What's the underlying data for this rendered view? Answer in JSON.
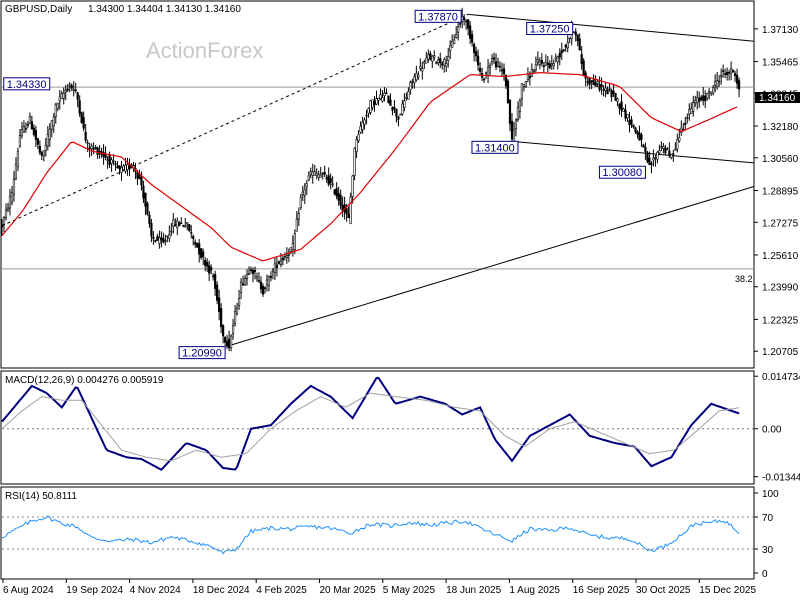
{
  "header": {
    "symbol": "GBPUSD,Daily",
    "ohlc": "1.34300 1.34404 1.34130 1.34160",
    "watermark": "ActionForex"
  },
  "colors": {
    "candle": "#000000",
    "moving_average": "#e00000",
    "macd_line": "#000080",
    "signal_line": "#a0a0a0",
    "rsi_line": "#1e90ff",
    "trendline": "#000000",
    "label_text": "#000080",
    "current_price_box": "#000000"
  },
  "chart_data": [
    {
      "type": "candlestick",
      "title": "GBPUSD,Daily",
      "ylim": [
        1.1985,
        1.3855
      ],
      "y_ticks": [
        "1.37130",
        "1.35465",
        "1.33845",
        "1.32180",
        "1.30560",
        "1.28895",
        "1.27275",
        "1.25610",
        "1.23990",
        "1.22325",
        "1.20705"
      ],
      "current_price": "1.34160",
      "x_ticks": [
        "6 Aug 2024",
        "19 Sep 2024",
        "4 Nov 2024",
        "18 Dec 2024",
        "4 Feb 2025",
        "20 Mar 2025",
        "5 May 2025",
        "18 Jun 2025",
        "1 Aug 2025",
        "16 Sep 2025",
        "30 Oct 2025",
        "15 Dec 2025"
      ],
      "price_path": [
        [
          0,
          1.271
        ],
        [
          10,
          1.288
        ],
        [
          18,
          1.317
        ],
        [
          28,
          1.325
        ],
        [
          40,
          1.305
        ],
        [
          55,
          1.333
        ],
        [
          68,
          1.343
        ],
        [
          75,
          1.338
        ],
        [
          85,
          1.312
        ],
        [
          100,
          1.308
        ],
        [
          118,
          1.299
        ],
        [
          132,
          1.302
        ],
        [
          140,
          1.292
        ],
        [
          150,
          1.265
        ],
        [
          162,
          1.262
        ],
        [
          172,
          1.272
        ],
        [
          185,
          1.272
        ],
        [
          200,
          1.256
        ],
        [
          212,
          1.245
        ],
        [
          222,
          1.215
        ],
        [
          228,
          1.2099
        ],
        [
          240,
          1.241
        ],
        [
          250,
          1.25
        ],
        [
          262,
          1.238
        ],
        [
          275,
          1.251
        ],
        [
          292,
          1.26
        ],
        [
          300,
          1.285
        ],
        [
          310,
          1.298
        ],
        [
          325,
          1.296
        ],
        [
          335,
          1.288
        ],
        [
          348,
          1.274
        ],
        [
          355,
          1.315
        ],
        [
          370,
          1.333
        ],
        [
          385,
          1.338
        ],
        [
          398,
          1.326
        ],
        [
          412,
          1.345
        ],
        [
          428,
          1.357
        ],
        [
          445,
          1.354
        ],
        [
          455,
          1.368
        ],
        [
          463,
          1.3787
        ],
        [
          472,
          1.365
        ],
        [
          482,
          1.345
        ],
        [
          492,
          1.356
        ],
        [
          505,
          1.348
        ],
        [
          512,
          1.314
        ],
        [
          522,
          1.342
        ],
        [
          538,
          1.354
        ],
        [
          552,
          1.353
        ],
        [
          565,
          1.362
        ],
        [
          575,
          1.3725
        ],
        [
          585,
          1.346
        ],
        [
          600,
          1.342
        ],
        [
          615,
          1.337
        ],
        [
          628,
          1.326
        ],
        [
          640,
          1.316
        ],
        [
          650,
          1.3008
        ],
        [
          662,
          1.312
        ],
        [
          672,
          1.306
        ],
        [
          682,
          1.32
        ],
        [
          695,
          1.334
        ],
        [
          708,
          1.337
        ],
        [
          722,
          1.348
        ],
        [
          735,
          1.35
        ],
        [
          740,
          1.3416
        ]
      ],
      "moving_average_path": [
        [
          0,
          1.266
        ],
        [
          20,
          1.278
        ],
        [
          45,
          1.298
        ],
        [
          70,
          1.314
        ],
        [
          90,
          1.309
        ],
        [
          120,
          1.306
        ],
        [
          150,
          1.292
        ],
        [
          180,
          1.281
        ],
        [
          210,
          1.27
        ],
        [
          230,
          1.26
        ],
        [
          262,
          1.253
        ],
        [
          300,
          1.259
        ],
        [
          330,
          1.272
        ],
        [
          360,
          1.288
        ],
        [
          395,
          1.31
        ],
        [
          430,
          1.334
        ],
        [
          470,
          1.348
        ],
        [
          505,
          1.347
        ],
        [
          540,
          1.349
        ],
        [
          580,
          1.348
        ],
        [
          620,
          1.342
        ],
        [
          652,
          1.326
        ],
        [
          682,
          1.319
        ],
        [
          705,
          1.324
        ],
        [
          740,
          1.332
        ]
      ],
      "labels": [
        {
          "text": "1.34330",
          "x_index": 68,
          "price": 1.3433
        },
        {
          "text": "1.20990",
          "x_index": 228,
          "price": 1.2099
        },
        {
          "text": "1.37870",
          "x_index": 463,
          "price": 1.3787
        },
        {
          "text": "1.37250",
          "x_index": 575,
          "price": 1.3725
        },
        {
          "text": "1.31400",
          "x_index": 512,
          "price": 1.314
        },
        {
          "text": "1.30080",
          "x_index": 650,
          "price": 1.3008
        }
      ],
      "fib_label": "38.2",
      "fib_level": 1.249,
      "horizontal_lines": [
        1.3416,
        1.249
      ],
      "trendlines": [
        {
          "style": "dashed",
          "from": [
            0,
            1.271
          ],
          "to": [
            468,
            1.3787
          ]
        },
        {
          "style": "solid",
          "from": [
            228,
            1.2099
          ],
          "to": [
            755,
            1.291
          ]
        },
        {
          "style": "solid",
          "from": [
            468,
            1.3787
          ],
          "to": [
            755,
            1.365
          ]
        },
        {
          "style": "solid",
          "from": [
            512,
            1.314
          ],
          "to": [
            755,
            1.303
          ]
        }
      ]
    },
    {
      "type": "line",
      "title": "MACD(12,26,9) 0.004276 0.005919",
      "ylim": [
        -0.0155,
        0.0162
      ],
      "y_ticks": [
        "0.014734",
        "0.00",
        "-0.013442"
      ],
      "series": [
        {
          "name": "MACD",
          "points": [
            [
              0,
              0.002
            ],
            [
              15,
              0.007
            ],
            [
              30,
              0.012
            ],
            [
              45,
              0.01
            ],
            [
              60,
              0.006
            ],
            [
              75,
              0.012
            ],
            [
              90,
              0.003
            ],
            [
              105,
              -0.006
            ],
            [
              125,
              -0.008
            ],
            [
              140,
              -0.0085
            ],
            [
              160,
              -0.0115
            ],
            [
              185,
              -0.004
            ],
            [
              205,
              -0.006
            ],
            [
              222,
              -0.011
            ],
            [
              235,
              -0.0115
            ],
            [
              250,
              0.0
            ],
            [
              270,
              0.001
            ],
            [
              290,
              0.007
            ],
            [
              310,
              0.012
            ],
            [
              330,
              0.009
            ],
            [
              352,
              0.003
            ],
            [
              377,
              0.0147
            ],
            [
              395,
              0.007
            ],
            [
              420,
              0.009
            ],
            [
              445,
              0.007
            ],
            [
              462,
              0.004
            ],
            [
              480,
              0.006
            ],
            [
              495,
              -0.003
            ],
            [
              512,
              -0.009
            ],
            [
              530,
              -0.002
            ],
            [
              550,
              0.001
            ],
            [
              570,
              0.004
            ],
            [
              590,
              -0.002
            ],
            [
              615,
              -0.004
            ],
            [
              635,
              -0.005
            ],
            [
              652,
              -0.0105
            ],
            [
              672,
              -0.008
            ],
            [
              692,
              0.001
            ],
            [
              712,
              0.007
            ],
            [
              740,
              0.0043
            ]
          ]
        },
        {
          "name": "Signal",
          "points": [
            [
              0,
              0.0
            ],
            [
              20,
              0.005
            ],
            [
              40,
              0.009
            ],
            [
              60,
              0.008
            ],
            [
              80,
              0.008
            ],
            [
              100,
              0.001
            ],
            [
              120,
              -0.006
            ],
            [
              145,
              -0.008
            ],
            [
              170,
              -0.009
            ],
            [
              195,
              -0.006
            ],
            [
              220,
              -0.008
            ],
            [
              245,
              -0.007
            ],
            [
              270,
              0.0
            ],
            [
              295,
              0.005
            ],
            [
              320,
              0.009
            ],
            [
              345,
              0.006
            ],
            [
              370,
              0.01
            ],
            [
              395,
              0.009
            ],
            [
              425,
              0.008
            ],
            [
              455,
              0.006
            ],
            [
              480,
              0.005
            ],
            [
              505,
              -0.002
            ],
            [
              525,
              -0.005
            ],
            [
              550,
              0.0
            ],
            [
              575,
              0.002
            ],
            [
              600,
              -0.001
            ],
            [
              625,
              -0.004
            ],
            [
              650,
              -0.007
            ],
            [
              675,
              -0.006
            ],
            [
              700,
              0.0
            ],
            [
              720,
              0.005
            ],
            [
              740,
              0.0059
            ]
          ]
        }
      ]
    },
    {
      "type": "line",
      "title": "RSI(14) 50.8111",
      "ylim": [
        0,
        100
      ],
      "y_ticks": [
        "100",
        "70",
        "30",
        "0"
      ],
      "guides": [
        70,
        30
      ],
      "series": [
        {
          "name": "RSI",
          "points": [
            [
              0,
              45
            ],
            [
              15,
              55
            ],
            [
              30,
              65
            ],
            [
              45,
              70
            ],
            [
              60,
              62
            ],
            [
              75,
              58
            ],
            [
              90,
              44
            ],
            [
              110,
              40
            ],
            [
              130,
              42
            ],
            [
              150,
              38
            ],
            [
              170,
              45
            ],
            [
              190,
              40
            ],
            [
              210,
              33
            ],
            [
              222,
              25
            ],
            [
              235,
              30
            ],
            [
              250,
              52
            ],
            [
              270,
              56
            ],
            [
              290,
              55
            ],
            [
              310,
              58
            ],
            [
              330,
              56
            ],
            [
              350,
              50
            ],
            [
              370,
              61
            ],
            [
              390,
              59
            ],
            [
              410,
              63
            ],
            [
              430,
              60
            ],
            [
              450,
              63
            ],
            [
              465,
              65
            ],
            [
              480,
              56
            ],
            [
              495,
              48
            ],
            [
              512,
              40
            ],
            [
              530,
              55
            ],
            [
              550,
              53
            ],
            [
              570,
              57
            ],
            [
              590,
              47
            ],
            [
              610,
              44
            ],
            [
              630,
              43
            ],
            [
              650,
              28
            ],
            [
              665,
              33
            ],
            [
              680,
              46
            ],
            [
              695,
              61
            ],
            [
              710,
              63
            ],
            [
              725,
              66
            ],
            [
              740,
              51
            ]
          ]
        }
      ]
    }
  ]
}
